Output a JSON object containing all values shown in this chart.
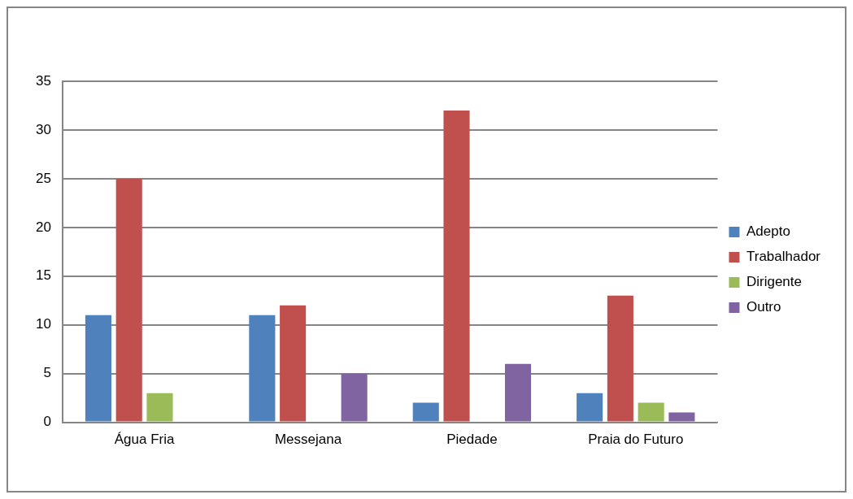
{
  "chart_data": {
    "type": "bar",
    "categories": [
      "Água Fria",
      "Messejana",
      "Piedade",
      "Praia do Futuro"
    ],
    "series": [
      {
        "name": "Adepto",
        "color": "#4f81bd",
        "values": [
          11,
          11,
          2,
          3
        ]
      },
      {
        "name": "Trabalhador",
        "color": "#c0504d",
        "values": [
          25,
          12,
          32,
          13
        ]
      },
      {
        "name": "Dirigente",
        "color": "#9bbb59",
        "values": [
          3,
          null,
          null,
          2
        ]
      },
      {
        "name": "Outro",
        "color": "#8064a2",
        "values": [
          null,
          5,
          6,
          1
        ]
      }
    ],
    "ylim": [
      0,
      35
    ],
    "yticks": [
      0,
      5,
      10,
      15,
      20,
      25,
      30,
      35
    ],
    "grid": "y",
    "legend": "right"
  }
}
